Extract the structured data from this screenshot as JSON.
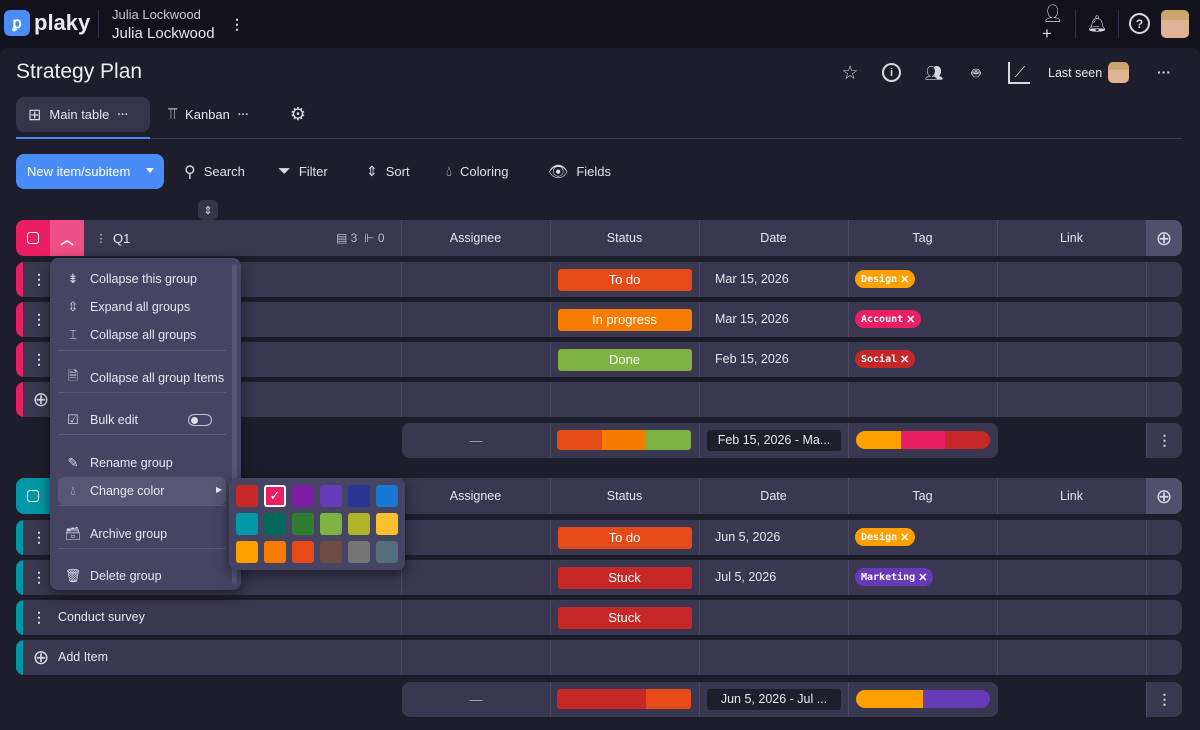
{
  "topbar": {
    "logo_text": "plaky",
    "workspace_top": "Julia Lockwood",
    "workspace_name": "Julia Lockwood"
  },
  "board": {
    "title": "Strategy Plan",
    "last_seen_label": "Last seen"
  },
  "tabs": [
    {
      "label": "Main table",
      "more": "···"
    },
    {
      "label": "Kanban",
      "more": "···"
    }
  ],
  "toolbar": {
    "new_item": "New item/subitem",
    "search": "Search",
    "filter": "Filter",
    "sort": "Sort",
    "coloring": "Coloring",
    "fields": "Fields"
  },
  "columns": [
    "Assignee",
    "Status",
    "Date",
    "Tag",
    "Link"
  ],
  "groups": [
    {
      "name": "Q1",
      "color": "#e91e63",
      "item_count": "3",
      "subitem_count": "0",
      "items": [
        {
          "name": "",
          "status": "To do",
          "status_color": "#e64a19",
          "date": "Mar 15, 2026",
          "tag": "Design",
          "tag_color": "#ffa000"
        },
        {
          "name": "",
          "status": "In progress",
          "status_color": "#f57c00",
          "date": "Mar 15, 2026",
          "tag": "Account",
          "tag_color": "#e91e63"
        },
        {
          "name": "",
          "status": "Done",
          "status_color": "#7cb342",
          "date": "Feb 15, 2026",
          "tag": "Social",
          "tag_color": "#c62828"
        }
      ],
      "add_item": "",
      "summary": {
        "assignee": "—",
        "status_bar": [
          "#e64a19",
          "#f57c00",
          "#7cb342"
        ],
        "date_range": "Feb 15, 2026 - Ma...",
        "tag_bar": [
          "#ffa000",
          "#e91e63",
          "#c62828"
        ]
      }
    },
    {
      "name": "",
      "color": "#0097a7",
      "items": [
        {
          "name": "",
          "status": "To do",
          "status_color": "#e64a19",
          "date": "Jun 5, 2026",
          "tag": "Design",
          "tag_color": "#ffa000"
        },
        {
          "name": "",
          "status": "Stuck",
          "status_color": "#c62828",
          "date": "Jul 5, 2026",
          "tag": "Marketing",
          "tag_color": "#673ab7"
        },
        {
          "name": "Conduct survey",
          "status": "Stuck",
          "status_color": "#c62828",
          "date": "",
          "tag": "",
          "tag_color": ""
        }
      ],
      "add_item": "Add Item",
      "summary": {
        "assignee": "—",
        "status_bar": [
          "#c62828",
          "#c62828",
          "#e64a19"
        ],
        "date_range": "Jun 5, 2026 - Jul ...",
        "tag_bar": [
          "#ffa000",
          "#673ab7"
        ]
      }
    }
  ],
  "menu": {
    "items": [
      {
        "label": "Collapse this group",
        "icon": "collapse-this-icon"
      },
      {
        "label": "Expand all groups",
        "icon": "expand-all-icon"
      },
      {
        "label": "Collapse all groups",
        "icon": "collapse-all-icon"
      },
      {
        "label": "Collapse all group Items",
        "icon": "collapse-items-icon"
      },
      {
        "label": "Bulk edit",
        "icon": "checkbox-icon",
        "toggle": false
      },
      {
        "label": "Rename group",
        "icon": "pencil-icon"
      },
      {
        "label": "Change color",
        "icon": "drop-icon"
      },
      {
        "label": "Archive group",
        "icon": "archive-icon"
      },
      {
        "label": "Delete group",
        "icon": "trash-icon"
      }
    ]
  },
  "palette": {
    "selected": "#e91e63",
    "colors": [
      "#c62828",
      "#e91e63",
      "#7b1fa2",
      "#673ab7",
      "#283593",
      "#1976d2",
      "#0097a7",
      "#00695c",
      "#2e7d32",
      "#7cb342",
      "#afb42b",
      "#fbc02d",
      "#ffa000",
      "#f57c00",
      "#e64a19",
      "#6d4c41",
      "#757575",
      "#546e7a"
    ]
  }
}
